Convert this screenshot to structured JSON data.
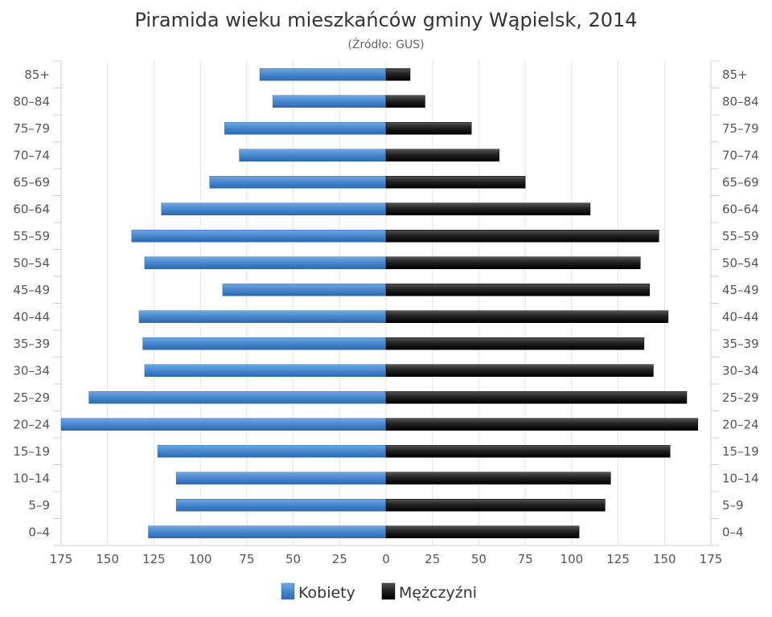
{
  "chart_data": {
    "type": "bar",
    "orientation": "horizontal-population-pyramid",
    "title": "Piramida wieku mieszkańców gminy Wąpielsk, 2014",
    "subtitle": "(Źródło: GUS)",
    "categories": [
      "85+",
      "80–84",
      "75–79",
      "70–74",
      "65–69",
      "60–64",
      "55–59",
      "50–54",
      "45–49",
      "40–44",
      "35–39",
      "30–34",
      "25–29",
      "20–24",
      "15–19",
      "10–14",
      "5–9",
      "0–4"
    ],
    "series": [
      {
        "name": "Kobiety",
        "side": "left",
        "color": "#3d7ec6",
        "values": [
          68,
          61,
          87,
          79,
          95,
          121,
          137,
          130,
          88,
          133,
          131,
          130,
          160,
          175,
          123,
          113,
          113,
          128
        ]
      },
      {
        "name": "Mężczyźni",
        "side": "right",
        "color": "#1a1a1a",
        "values": [
          13,
          21,
          46,
          61,
          75,
          110,
          147,
          137,
          142,
          152,
          139,
          144,
          162,
          168,
          153,
          121,
          118,
          104
        ]
      }
    ],
    "xlim": [
      -175,
      175
    ],
    "x_ticks": [
      175,
      150,
      125,
      100,
      75,
      50,
      25,
      0,
      25,
      50,
      75,
      100,
      125,
      150,
      175
    ],
    "grid": true,
    "legend_position": "bottom-center"
  }
}
